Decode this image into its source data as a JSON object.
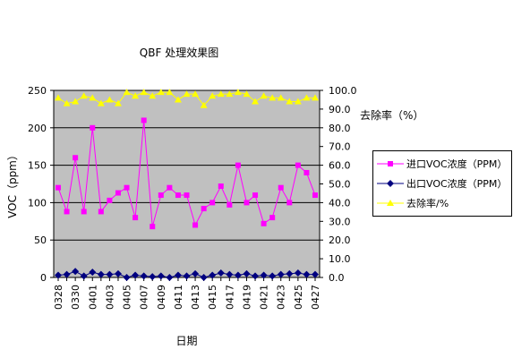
{
  "chart_data": {
    "type": "line",
    "title": "QBF 处理效果图",
    "xlabel": "日期",
    "ylabel": "VOC（ppm）",
    "y2label": "去除率（%）",
    "ylim": [
      0,
      250
    ],
    "y2lim": [
      0,
      100
    ],
    "yticks": [
      "0",
      "50",
      "100",
      "150",
      "200",
      "250"
    ],
    "y2ticks": [
      "0.0",
      "10.0",
      "20.0",
      "30.0",
      "40.0",
      "50.0",
      "60.0",
      "70.0",
      "80.0",
      "90.0",
      "100.0"
    ],
    "xtick_labels": [
      "0328",
      "0330",
      "0401",
      "0403",
      "0405",
      "0407",
      "0409",
      "0411",
      "0413",
      "0415",
      "0417",
      "0419",
      "0421",
      "0423",
      "0425",
      "0427"
    ],
    "plot_background": "#c0c0c0",
    "grid": true,
    "legend_position": "right",
    "series": [
      {
        "name": "进口VOC浓度（PPM）",
        "axis": "left",
        "color": "#ff00ff",
        "marker": "square",
        "values": [
          120,
          88,
          160,
          88,
          200,
          88,
          103,
          113,
          120,
          80,
          210,
          68,
          110,
          120,
          110,
          110,
          70,
          92,
          100,
          122,
          97,
          150,
          100,
          110,
          72,
          80,
          120,
          100,
          150,
          140,
          110
        ]
      },
      {
        "name": "出口VOC浓度（PPM）",
        "axis": "left",
        "color": "#000080",
        "marker": "diamond",
        "values": [
          3,
          4,
          8,
          2,
          7,
          4,
          4,
          5,
          0,
          3,
          2,
          1,
          2,
          0,
          3,
          2,
          5,
          0,
          3,
          6,
          4,
          3,
          5,
          2,
          3,
          2,
          4,
          5,
          6,
          4,
          4
        ]
      },
      {
        "name": "去除率/%",
        "axis": "right",
        "color": "#ffff00",
        "marker": "triangle",
        "values": [
          96,
          93,
          94,
          97,
          96,
          93,
          95,
          93,
          99,
          97,
          99,
          97,
          99,
          99,
          95,
          98,
          98,
          92,
          97,
          98,
          98,
          99,
          98,
          94,
          97,
          96,
          96,
          94,
          94,
          96,
          96
        ]
      }
    ]
  }
}
